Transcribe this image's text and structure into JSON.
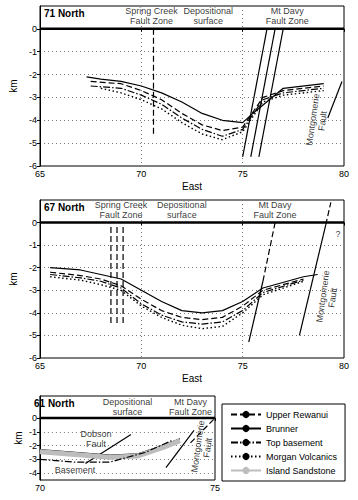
{
  "chart_data": [
    {
      "type": "line",
      "title": "71 North",
      "x_label": "East",
      "y_label": "km",
      "xlim": [
        65,
        80
      ],
      "xticks": [
        65,
        70,
        75,
        80
      ],
      "ylim": [
        -6,
        1
      ],
      "yticks": [
        -6,
        -5,
        -4,
        -3,
        -2,
        -1,
        0
      ],
      "grid": true,
      "surface": {
        "y": 0
      },
      "series": [
        {
          "name": "Upper Rewanui",
          "color": "#000000",
          "line_style": "dashed",
          "x": [
            67.5,
            69,
            70,
            71,
            72,
            73,
            74,
            75,
            76,
            77,
            79
          ],
          "values": [
            -2.3,
            -2.4,
            -2.7,
            -3.1,
            -3.7,
            -4.2,
            -4.45,
            -4.3,
            -3.0,
            -2.7,
            -2.5
          ]
        },
        {
          "name": "Brunner",
          "color": "#000000",
          "line_style": "solid",
          "x": [
            67.3,
            68,
            69,
            70,
            71,
            72,
            73,
            74,
            75,
            75.5,
            77,
            79
          ],
          "values": [
            -2.1,
            -2.2,
            -2.3,
            -2.5,
            -2.8,
            -3.2,
            -3.7,
            -4.0,
            -4.1,
            -3.7,
            -2.6,
            -2.4
          ]
        },
        {
          "name": "Top basement",
          "color": "#000000",
          "line_style": "dashdot",
          "x": [
            67.5,
            69,
            70,
            71,
            72,
            73,
            74,
            75,
            76,
            77,
            79
          ],
          "values": [
            -2.5,
            -2.6,
            -2.9,
            -3.3,
            -3.9,
            -4.4,
            -4.7,
            -4.4,
            -3.1,
            -2.8,
            -2.6
          ]
        },
        {
          "name": "Morgan Volcanics",
          "color": "#000000",
          "line_style": "dotted",
          "x": [
            68,
            69,
            70,
            71,
            72,
            73,
            74,
            75,
            76,
            77,
            79
          ],
          "values": [
            -2.6,
            -2.8,
            -3.1,
            -3.5,
            -4.1,
            -4.6,
            -4.85,
            -4.5,
            -3.2,
            -2.9,
            -2.7
          ]
        }
      ],
      "faults": [
        {
          "line_style": "dashed",
          "points": [
            [
              70.6,
              0
            ],
            [
              70.6,
              -4.6
            ]
          ]
        },
        {
          "line_style": "solid",
          "points": [
            [
              75.0,
              -5.6
            ],
            [
              76.2,
              0
            ]
          ]
        },
        {
          "line_style": "solid",
          "points": [
            [
              75.4,
              -5.6
            ],
            [
              76.6,
              0
            ]
          ]
        },
        {
          "line_style": "solid",
          "points": [
            [
              75.8,
              -5.6
            ],
            [
              77.0,
              0
            ]
          ]
        },
        {
          "line_style": "solid",
          "points": [
            [
              79.2,
              -3.9
            ],
            [
              79.9,
              -2.3
            ]
          ]
        }
      ],
      "annotations": [
        {
          "text": "Spring Creek\nFault Zone",
          "x": 70.5,
          "y": 0.55
        },
        {
          "text": "Depositional\nsurface",
          "x": 73.3,
          "y": 0.55
        },
        {
          "text": "Mt Davy\nFault Zone",
          "x": 77.2,
          "y": 0.55
        },
        {
          "text": "Montgomerie\nFault",
          "x": 78.7,
          "y": -4.0,
          "orientation": "vertical"
        }
      ]
    },
    {
      "type": "line",
      "title": "67 North",
      "x_label": "East",
      "y_label": "km",
      "xlim": [
        65,
        80
      ],
      "xticks": [
        65,
        70,
        75,
        80
      ],
      "ylim": [
        -6,
        1
      ],
      "yticks": [
        -6,
        -5,
        -4,
        -3,
        -2,
        -1,
        0
      ],
      "grid": true,
      "surface": {
        "y": 0
      },
      "series": [
        {
          "name": "Upper Rewanui",
          "color": "#000000",
          "line_style": "dashed",
          "x": [
            65.5,
            67,
            68,
            69,
            70,
            71,
            72,
            73,
            74,
            75,
            76,
            78
          ],
          "values": [
            -2.2,
            -2.35,
            -2.5,
            -2.8,
            -3.4,
            -3.9,
            -4.2,
            -4.3,
            -4.2,
            -3.7,
            -3.0,
            -2.5
          ]
        },
        {
          "name": "Brunner",
          "color": "#000000",
          "line_style": "solid",
          "x": [
            65.5,
            67,
            68,
            69,
            70,
            71,
            72,
            73,
            74,
            75,
            76,
            78,
            78.7
          ],
          "values": [
            -2.0,
            -2.1,
            -2.3,
            -2.5,
            -3.0,
            -3.5,
            -3.9,
            -4.0,
            -3.9,
            -3.5,
            -2.9,
            -2.4,
            -2.3
          ]
        },
        {
          "name": "Top basement",
          "color": "#000000",
          "line_style": "dashdot",
          "x": [
            65.5,
            67,
            68,
            69,
            70,
            71,
            72,
            73,
            74,
            75,
            76,
            78
          ],
          "values": [
            -2.3,
            -2.45,
            -2.6,
            -2.9,
            -3.6,
            -4.1,
            -4.4,
            -4.5,
            -4.4,
            -3.9,
            -3.1,
            -2.55
          ]
        },
        {
          "name": "Morgan Volcanics",
          "color": "#000000",
          "line_style": "dotted",
          "x": [
            65.5,
            67,
            68,
            69,
            70,
            71,
            72,
            73,
            74,
            75,
            76,
            78
          ],
          "values": [
            -2.4,
            -2.55,
            -2.75,
            -3.0,
            -3.7,
            -4.2,
            -4.55,
            -4.7,
            -4.6,
            -4.0,
            -3.2,
            -2.6
          ]
        }
      ],
      "faults": [
        {
          "line_style": "dashed",
          "points": [
            [
              68.5,
              -0.2
            ],
            [
              68.5,
              -4.5
            ]
          ]
        },
        {
          "line_style": "dashed",
          "points": [
            [
              68.8,
              -0.2
            ],
            [
              68.8,
              -4.5
            ]
          ]
        },
        {
          "line_style": "dashed",
          "points": [
            [
              69.1,
              -0.2
            ],
            [
              69.1,
              -4.5
            ]
          ]
        },
        {
          "line_style": "solid",
          "points": [
            [
              75.3,
              -5.3
            ],
            [
              76.0,
              -2.6
            ]
          ]
        },
        {
          "line_style": "dashed",
          "points": [
            [
              76.0,
              -2.6
            ],
            [
              76.6,
              0
            ]
          ]
        },
        {
          "line_style": "solid",
          "points": [
            [
              77.8,
              -5.0
            ],
            [
              79.1,
              -0.1
            ]
          ]
        },
        {
          "line_style": "dashed",
          "points": [
            [
              79.1,
              -0.1
            ],
            [
              79.35,
              0.9
            ]
          ]
        }
      ],
      "annotations": [
        {
          "text": "Spring Creek\nFault Zone",
          "x": 69.0,
          "y": 0.55
        },
        {
          "text": "Depositional\nsurface",
          "x": 72.0,
          "y": 0.55
        },
        {
          "text": "Mt Davy\nFault Zone",
          "x": 76.6,
          "y": 0.55
        },
        {
          "text": "Montgomerie\nFault",
          "x": 79.2,
          "y": -3.3,
          "orientation": "vertical"
        },
        {
          "text": "?",
          "x": 79.7,
          "y": -0.5
        }
      ]
    },
    {
      "type": "line",
      "title": "61 North",
      "y_label": "km",
      "xlim": [
        70,
        75
      ],
      "xticks": [
        70,
        75
      ],
      "ylim": [
        -4.5,
        1.6
      ],
      "yticks": [
        -4,
        -3,
        -2,
        -1,
        0
      ],
      "grid": true,
      "legend": "lower right",
      "surface": {
        "y": 0
      },
      "series": [
        {
          "name": "Brunner",
          "color": "#000000",
          "line_style": "solid",
          "x": [
            70,
            71,
            72,
            72.8,
            73.5,
            74
          ],
          "values": [
            -2.3,
            -2.5,
            -2.7,
            -2.6,
            -2.0,
            -1.5
          ]
        },
        {
          "name": "Island Sandstone",
          "color": "#bdbdbd",
          "line_style": "band",
          "x": [
            70,
            71,
            72,
            72.8,
            73.5,
            74
          ],
          "values": [
            -2.45,
            -2.65,
            -2.85,
            -2.75,
            -2.15,
            -1.65
          ]
        },
        {
          "name": "Top basement",
          "color": "#000000",
          "line_style": "dashdot",
          "x": [
            70,
            71,
            72,
            73,
            73.8
          ],
          "values": [
            -3.0,
            -3.2,
            -3.2,
            -2.5,
            -1.6
          ]
        }
      ],
      "faults": [
        {
          "line_style": "solid",
          "points": [
            [
              71.3,
              -3.3
            ],
            [
              72.6,
              -1.2
            ]
          ]
        },
        {
          "line_style": "solid",
          "points": [
            [
              73.6,
              -3.6
            ],
            [
              74.4,
              -0.9
            ]
          ]
        },
        {
          "line_style": "dashed",
          "points": [
            [
              74.3,
              -1.8
            ],
            [
              75.0,
              0
            ]
          ]
        }
      ],
      "annotations": [
        {
          "text": "Depositional\nsurface",
          "x": 72.5,
          "y": 0.8
        },
        {
          "text": "Mt Davy\nFault Zone",
          "x": 74.3,
          "y": 0.8
        },
        {
          "text": "Dobson\nFault",
          "x": 71.6,
          "y": -1.5
        },
        {
          "text": "Basement",
          "x": 71.0,
          "y": -3.8
        },
        {
          "text": "Montgomerie\nFault",
          "x": 74.65,
          "y": -2.1,
          "orientation": "vertical"
        }
      ]
    }
  ]
}
